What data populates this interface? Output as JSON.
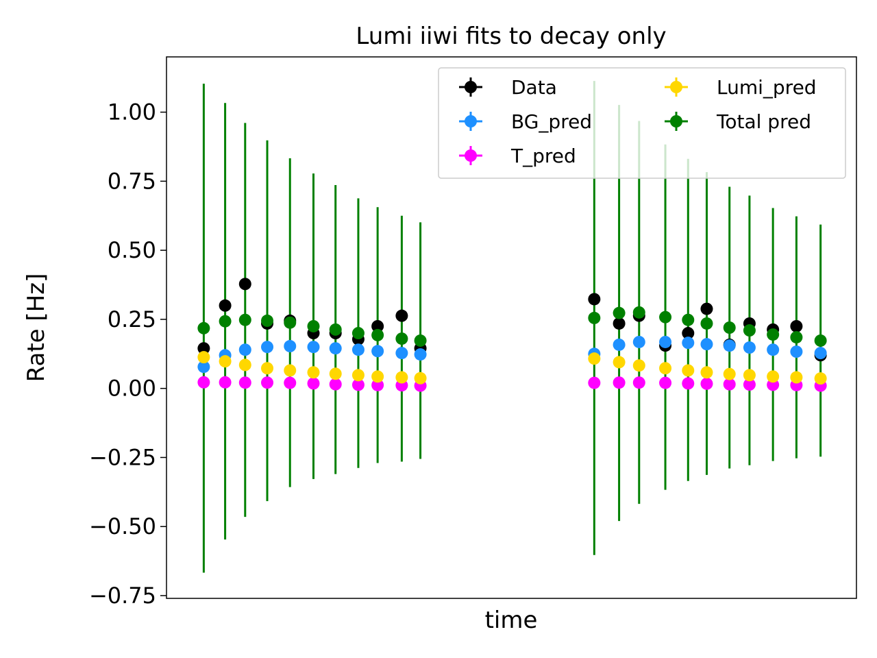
{
  "chart_data": {
    "type": "scatter",
    "title": "Lumi iiwi fits to decay only",
    "xlabel": "time",
    "ylabel": "Rate [Hz]",
    "ylim": [
      -0.76,
      1.2
    ],
    "xlim": [
      0.0,
      1.0
    ],
    "xticks_shown": false,
    "yticks": [
      -0.75,
      -0.5,
      -0.25,
      0.0,
      0.25,
      0.5,
      0.75,
      1.0
    ],
    "ytick_labels": [
      "−0.75",
      "−0.50",
      "−0.25",
      "0.00",
      "0.25",
      "0.50",
      "0.75",
      "1.00"
    ],
    "grid": false,
    "legend": {
      "placement": "top-right",
      "columns": 2
    },
    "x": [
      0.054,
      0.085,
      0.114,
      0.146,
      0.179,
      0.213,
      0.245,
      0.278,
      0.306,
      0.341,
      0.368,
      0.62,
      0.656,
      0.685,
      0.723,
      0.756,
      0.783,
      0.816,
      0.845,
      0.879,
      0.913,
      0.948
    ],
    "series": [
      {
        "name": "Data",
        "color": "#000000",
        "y": [
          0.145,
          0.3,
          0.378,
          0.235,
          0.245,
          0.2,
          0.2,
          0.178,
          0.225,
          0.263,
          0.145,
          0.323,
          0.235,
          0.263,
          0.155,
          0.2,
          0.288,
          0.158,
          0.235,
          0.213,
          0.225,
          0.12
        ]
      },
      {
        "name": "BG_pred",
        "color": "#1e90ff",
        "y": [
          0.078,
          0.12,
          0.14,
          0.15,
          0.153,
          0.15,
          0.145,
          0.14,
          0.135,
          0.128,
          0.123,
          0.125,
          0.158,
          0.168,
          0.168,
          0.165,
          0.16,
          0.155,
          0.148,
          0.14,
          0.133,
          0.128
        ]
      },
      {
        "name": "T_pred",
        "color": "#ff00ff",
        "y": [
          0.022,
          0.022,
          0.021,
          0.021,
          0.02,
          0.018,
          0.015,
          0.013,
          0.012,
          0.011,
          0.01,
          0.02,
          0.021,
          0.021,
          0.02,
          0.018,
          0.017,
          0.015,
          0.014,
          0.013,
          0.012,
          0.01
        ]
      },
      {
        "name": "Lumi_pred",
        "color": "#ffd700",
        "y": [
          0.113,
          0.098,
          0.085,
          0.073,
          0.065,
          0.058,
          0.053,
          0.048,
          0.043,
          0.04,
          0.037,
          0.108,
          0.095,
          0.083,
          0.073,
          0.065,
          0.058,
          0.052,
          0.048,
          0.043,
          0.04,
          0.036
        ]
      },
      {
        "name": "Total pred",
        "color": "#008000",
        "y": [
          0.218,
          0.243,
          0.248,
          0.245,
          0.238,
          0.225,
          0.213,
          0.2,
          0.193,
          0.18,
          0.173,
          0.255,
          0.273,
          0.275,
          0.258,
          0.248,
          0.235,
          0.22,
          0.21,
          0.195,
          0.185,
          0.173
        ],
        "yerr": [
          0.885,
          0.79,
          0.713,
          0.653,
          0.595,
          0.553,
          0.523,
          0.488,
          0.463,
          0.445,
          0.428,
          0.858,
          0.753,
          0.693,
          0.625,
          0.583,
          0.548,
          0.51,
          0.488,
          0.458,
          0.438,
          0.42
        ]
      }
    ]
  }
}
